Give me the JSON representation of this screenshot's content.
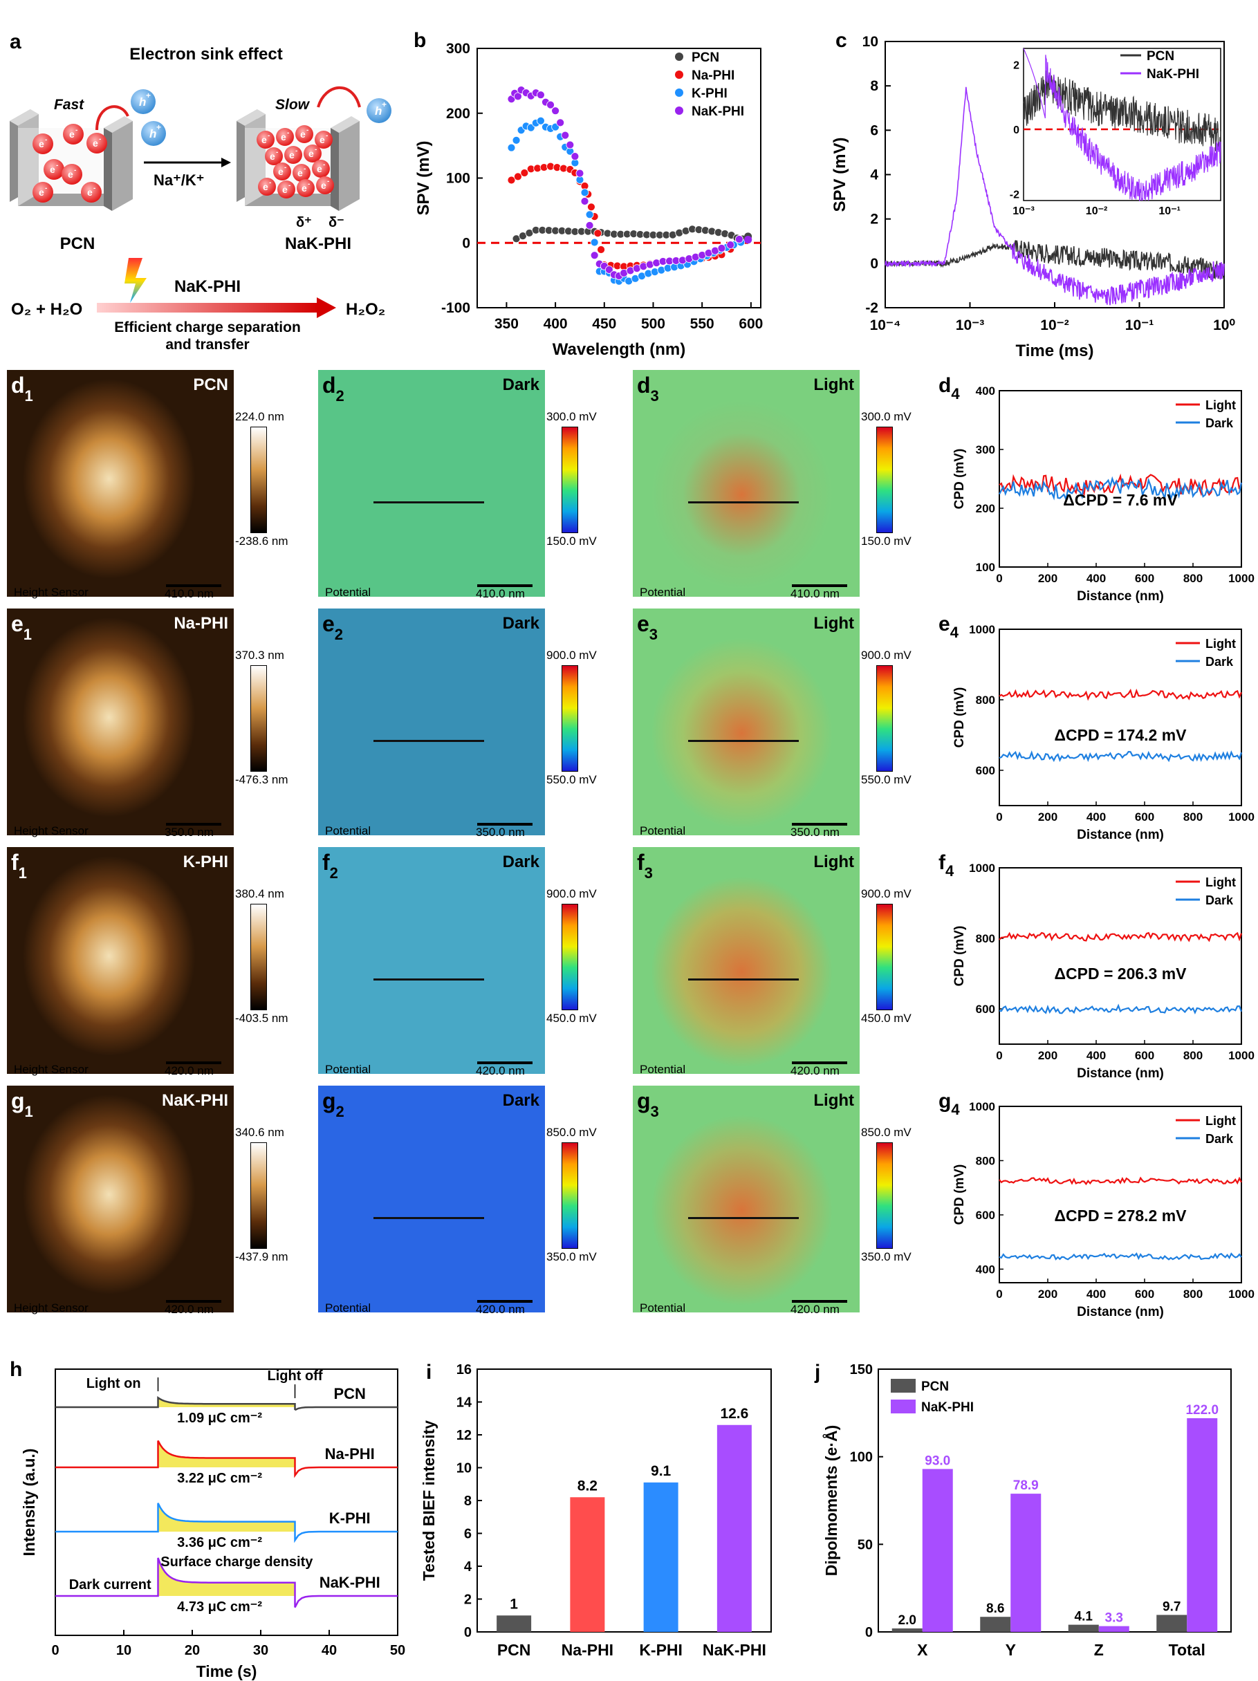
{
  "panel_a": {
    "label": "a",
    "title": "Electron sink effect",
    "fast": "Fast",
    "slow": "Slow",
    "hole": "h",
    "hole_sup": "+",
    "electron": "e",
    "electron_sup": "-",
    "ions": "Na⁺/K⁺",
    "left_name": "PCN",
    "right_name": "NaK-PHI",
    "delta_plus": "δ⁺",
    "delta_minus": "δ⁻",
    "reaction_catalyst": "NaK-PHI",
    "reactant": "O₂ + H₂O",
    "product": "H₂O₂",
    "caption_1": "Efficient charge separation",
    "caption_2": "and transfer"
  },
  "panel_b": {
    "label": "b",
    "chart_data": {
      "type": "scatter",
      "title": "",
      "xlabel": "Wavelength (nm)",
      "ylabel": "SPV (mV)",
      "xlim": [
        320,
        610
      ],
      "ylim": [
        -100,
        300
      ],
      "xticks": [
        350,
        400,
        450,
        500,
        550,
        600
      ],
      "yticks": [
        -100,
        0,
        100,
        200,
        300
      ],
      "legend_position": "top-right",
      "series": [
        {
          "name": "PCN",
          "color": "#444444",
          "x": [
            360,
            380,
            400,
            420,
            440,
            460,
            480,
            500,
            520,
            540,
            560,
            580,
            597
          ],
          "y": [
            8,
            18,
            15,
            14,
            17,
            16,
            18,
            15,
            12,
            18,
            14,
            10,
            10
          ]
        },
        {
          "name": "Na-PHI",
          "color": "#ee1111",
          "x": [
            355,
            375,
            395,
            415,
            430,
            440,
            450,
            470,
            490,
            510,
            530,
            550,
            570,
            597
          ],
          "y": [
            100,
            118,
            120,
            112,
            90,
            40,
            -35,
            -40,
            -38,
            -30,
            -25,
            -20,
            -15,
            5
          ]
        },
        {
          "name": "K-PHI",
          "color": "#1e90ff",
          "x": [
            355,
            370,
            385,
            400,
            415,
            430,
            445,
            460,
            475,
            495,
            515,
            535,
            555,
            575,
            597
          ],
          "y": [
            150,
            180,
            185,
            175,
            140,
            80,
            -40,
            -55,
            -60,
            -45,
            -35,
            -30,
            -20,
            -10,
            5
          ]
        },
        {
          "name": "NaK-PHI",
          "color": "#9922ee",
          "x": [
            355,
            365,
            380,
            395,
            410,
            425,
            440,
            455,
            470,
            490,
            510,
            530,
            550,
            570,
            597
          ],
          "y": [
            225,
            232,
            230,
            215,
            170,
            110,
            -20,
            -45,
            -50,
            -40,
            -30,
            -25,
            -15,
            -5,
            5
          ]
        }
      ]
    }
  },
  "panel_c": {
    "label": "c",
    "chart_data": {
      "type": "line",
      "xlabel": "Time (ms)",
      "ylabel": "SPV (mV)",
      "xscale": "log",
      "xlim": [
        0.0001,
        1
      ],
      "ylim": [
        -2,
        10
      ],
      "xtick_labels": [
        "10⁻⁴",
        "10⁻³",
        "10⁻²",
        "10⁻¹",
        "10⁰"
      ],
      "yticks": [
        -2,
        0,
        2,
        4,
        6,
        8,
        10
      ],
      "series": [
        {
          "name": "PCN",
          "color": "#333333",
          "x": [
            0.0001,
            0.0005,
            0.001,
            0.002,
            0.005,
            0.01,
            0.03,
            0.1,
            0.3,
            0.8
          ],
          "y": [
            0,
            0,
            0.3,
            0.8,
            0.6,
            0.4,
            0.3,
            0.1,
            0,
            -0.3
          ]
        },
        {
          "name": "NaK-PHI",
          "color": "#9b30ff",
          "x": [
            0.0001,
            0.0005,
            0.0007,
            0.0009,
            0.0012,
            0.002,
            0.004,
            0.008,
            0.02,
            0.04,
            0.1,
            0.3,
            0.8
          ],
          "y": [
            0,
            0,
            3,
            7.9,
            5,
            1.5,
            0.2,
            -0.5,
            -1.2,
            -1.5,
            -1.2,
            -0.8,
            -0.3
          ]
        }
      ],
      "inset": {
        "xlim": [
          0.001,
          0.5
        ],
        "ylim": [
          -2.2,
          2.5
        ],
        "yticks": [
          -2,
          0,
          2
        ],
        "xtick_labels": [
          "10⁻³",
          "10⁻²",
          "10⁻¹"
        ]
      }
    }
  },
  "afm_rows": [
    {
      "id": "d",
      "sample": "PCN",
      "height": {
        "max": "224.0 nm",
        "min": "-238.6 nm"
      },
      "potential": {
        "max": "300.0 mV",
        "min": "150.0 mV"
      },
      "scale": "410.0 nm",
      "dark_color": "#5fc28a",
      "light_color": "#86c97a",
      "delta": "ΔCPD = 7.6 mV",
      "cpd": {
        "type": "line",
        "xlabel": "Distance (nm)",
        "ylabel": "CPD (mV)",
        "xlim": [
          0,
          1000
        ],
        "ylim": [
          100,
          400
        ],
        "yticks": [
          100,
          200,
          300,
          400
        ],
        "light": 240,
        "dark": 233,
        "amp": 14
      }
    },
    {
      "id": "e",
      "sample": "Na-PHI",
      "height": {
        "max": "370.3 nm",
        "min": "-476.3 nm"
      },
      "potential": {
        "max": "900.0 mV",
        "min": "550.0 mV"
      },
      "scale": "350.0 nm",
      "dark_color": "#3f8fb0",
      "light_color": "#a0c66a",
      "delta": "ΔCPD = 174.2 mV",
      "cpd": {
        "type": "line",
        "xlabel": "Distance (nm)",
        "ylabel": "CPD (mV)",
        "xlim": [
          0,
          1000
        ],
        "ylim": [
          500,
          1000
        ],
        "yticks": [
          600,
          800,
          1000
        ],
        "light": 815,
        "dark": 640,
        "amp": 10
      }
    },
    {
      "id": "f",
      "sample": "K-PHI",
      "height": {
        "max": "380.4 nm",
        "min": "-403.5 nm"
      },
      "potential": {
        "max": "900.0 mV",
        "min": "450.0 mV"
      },
      "scale": "420.0 nm",
      "dark_color": "#4fa6c2",
      "light_color": "#b5b45a",
      "delta": "ΔCPD = 206.3 mV",
      "cpd": {
        "type": "line",
        "xlabel": "Distance (nm)",
        "ylabel": "CPD (mV)",
        "xlim": [
          0,
          1000
        ],
        "ylim": [
          500,
          1000
        ],
        "yticks": [
          600,
          800,
          1000
        ],
        "light": 805,
        "dark": 598,
        "amp": 9
      }
    },
    {
      "id": "g",
      "sample": "NaK-PHI",
      "height": {
        "max": "340.6 nm",
        "min": "-437.9 nm"
      },
      "potential": {
        "max": "850.0 mV",
        "min": "350.0 mV"
      },
      "scale": "420.0 nm",
      "dark_color": "#2f66d8",
      "light_color": "#a8b762",
      "delta": "ΔCPD = 278.2 mV",
      "cpd": {
        "type": "line",
        "xlabel": "Distance (nm)",
        "ylabel": "CPD (mV)",
        "xlim": [
          0,
          1000
        ],
        "ylim": [
          350,
          1000
        ],
        "yticks": [
          400,
          600,
          800,
          1000
        ],
        "light": 725,
        "dark": 447,
        "amp": 9
      }
    }
  ],
  "afm_common": {
    "height_caption": "Height Sensor",
    "potential_caption": "Potential",
    "dark": "Dark",
    "light": "Light",
    "legend_light": "Light",
    "legend_dark": "Dark"
  },
  "panel_h": {
    "label": "h",
    "xlabel": "Time (s)",
    "ylabel": "Intensity (a.u.)",
    "xlim": [
      0,
      50
    ],
    "xticks": [
      0,
      10,
      20,
      30,
      40,
      50
    ],
    "light_on": "Light on",
    "light_off": "Light off",
    "dark_current": "Dark current",
    "surface_charge": "Surface charge density",
    "traces": [
      {
        "name": "PCN",
        "color": "#444444",
        "value": "1.09 μC cm⁻²",
        "amp": 0.25
      },
      {
        "name": "Na-PHI",
        "color": "#ee1111",
        "value": "3.22 μC cm⁻²",
        "amp": 0.7
      },
      {
        "name": "K-PHI",
        "color": "#1e90ff",
        "value": "3.36 μC cm⁻²",
        "amp": 0.75
      },
      {
        "name": "NaK-PHI",
        "color": "#9922ee",
        "value": "4.73 μC cm⁻²",
        "amp": 1.0
      }
    ]
  },
  "panel_i": {
    "label": "i",
    "chart_data": {
      "type": "bar",
      "ylabel": "Tested BIEF intensity",
      "ylim": [
        0,
        16
      ],
      "yticks": [
        0,
        2,
        4,
        6,
        8,
        10,
        12,
        14,
        16
      ],
      "categories": [
        "PCN",
        "Na-PHI",
        "K-PHI",
        "NaK-PHI"
      ],
      "values": [
        1,
        8.2,
        9.1,
        12.6
      ],
      "value_labels": [
        "1",
        "8.2",
        "9.1",
        "12.6"
      ],
      "colors": [
        "#555555",
        "#ff4d4d",
        "#2b8cff",
        "#a84dff"
      ]
    }
  },
  "panel_j": {
    "label": "j",
    "chart_data": {
      "type": "bar",
      "ylabel": "Dipolmoments (e·Å)",
      "ylim": [
        0,
        150
      ],
      "yticks": [
        0,
        50,
        100,
        150
      ],
      "categories": [
        "X",
        "Y",
        "Z",
        "Total"
      ],
      "legend_position": "top-left",
      "series": [
        {
          "name": "PCN",
          "color": "#555555",
          "values": [
            2.0,
            8.6,
            4.1,
            9.7
          ],
          "labels": [
            "2.0",
            "8.6",
            "4.1",
            "9.7"
          ]
        },
        {
          "name": "NaK-PHI",
          "color": "#a84dff",
          "values": [
            93.0,
            78.9,
            3.3,
            122.0
          ],
          "labels": [
            "93.0",
            "78.9",
            "3.3",
            "122.0"
          ]
        }
      ]
    }
  }
}
